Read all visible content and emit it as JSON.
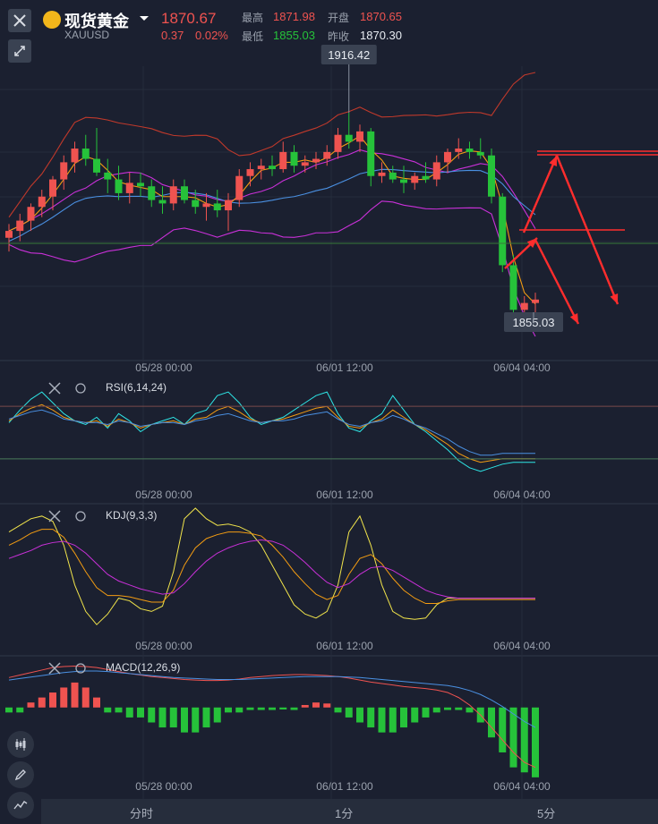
{
  "header": {
    "name": "现货黄金",
    "symbol": "XAUUSD",
    "price": "1870.67",
    "change": "0.37",
    "change_pct": "0.02%",
    "high_label": "最高",
    "high": "1871.98",
    "open_label": "开盘",
    "open": "1870.65",
    "low_label": "最低",
    "low": "1855.03",
    "prev_label": "昨收",
    "prev": "1870.30"
  },
  "callouts": {
    "max_label": "1916.42",
    "min_label": "1855.03"
  },
  "timeframes": [
    "分时",
    "1分",
    "5分"
  ],
  "colors": {
    "up": "#ef5350",
    "down": "#26c23a",
    "bg": "#1b2030",
    "ma_fast": "#f39c12",
    "ma_slow": "#4a90e2",
    "ma_mid": "#c930d8",
    "boll": "#c0392b",
    "arrow": "#ff2d2d"
  },
  "chart_data": [
    {
      "type": "candlestick",
      "name": "price",
      "x_ticks": [
        "05/28 00:00",
        "06/01 12:00",
        "06/04 04:00"
      ],
      "ylim": [
        1845,
        1930
      ],
      "candles": [
        {
          "o": 1880,
          "h": 1884,
          "l": 1876,
          "c": 1882
        },
        {
          "o": 1882,
          "h": 1887,
          "l": 1879,
          "c": 1885
        },
        {
          "o": 1885,
          "h": 1890,
          "l": 1882,
          "c": 1889
        },
        {
          "o": 1889,
          "h": 1894,
          "l": 1886,
          "c": 1892
        },
        {
          "o": 1892,
          "h": 1898,
          "l": 1888,
          "c": 1897
        },
        {
          "o": 1897,
          "h": 1904,
          "l": 1894,
          "c": 1902
        },
        {
          "o": 1902,
          "h": 1908,
          "l": 1899,
          "c": 1906
        },
        {
          "o": 1906,
          "h": 1910,
          "l": 1901,
          "c": 1903
        },
        {
          "o": 1903,
          "h": 1912,
          "l": 1898,
          "c": 1899
        },
        {
          "o": 1899,
          "h": 1903,
          "l": 1893,
          "c": 1897
        },
        {
          "o": 1897,
          "h": 1901,
          "l": 1891,
          "c": 1893
        },
        {
          "o": 1893,
          "h": 1899,
          "l": 1890,
          "c": 1896
        },
        {
          "o": 1896,
          "h": 1899,
          "l": 1892,
          "c": 1895
        },
        {
          "o": 1895,
          "h": 1897,
          "l": 1889,
          "c": 1891
        },
        {
          "o": 1891,
          "h": 1895,
          "l": 1887,
          "c": 1890
        },
        {
          "o": 1890,
          "h": 1897,
          "l": 1888,
          "c": 1895
        },
        {
          "o": 1895,
          "h": 1897,
          "l": 1890,
          "c": 1891
        },
        {
          "o": 1891,
          "h": 1894,
          "l": 1887,
          "c": 1889
        },
        {
          "o": 1889,
          "h": 1893,
          "l": 1885,
          "c": 1890
        },
        {
          "o": 1890,
          "h": 1894,
          "l": 1886,
          "c": 1888
        },
        {
          "o": 1888,
          "h": 1893,
          "l": 1882,
          "c": 1891
        },
        {
          "o": 1891,
          "h": 1900,
          "l": 1889,
          "c": 1898
        },
        {
          "o": 1898,
          "h": 1902,
          "l": 1895,
          "c": 1900
        },
        {
          "o": 1900,
          "h": 1903,
          "l": 1897,
          "c": 1901
        },
        {
          "o": 1901,
          "h": 1904,
          "l": 1898,
          "c": 1900
        },
        {
          "o": 1900,
          "h": 1908,
          "l": 1899,
          "c": 1905
        },
        {
          "o": 1905,
          "h": 1907,
          "l": 1899,
          "c": 1901
        },
        {
          "o": 1901,
          "h": 1904,
          "l": 1899,
          "c": 1902
        },
        {
          "o": 1902,
          "h": 1905,
          "l": 1900,
          "c": 1903
        },
        {
          "o": 1903,
          "h": 1907,
          "l": 1901,
          "c": 1905
        },
        {
          "o": 1905,
          "h": 1912,
          "l": 1903,
          "c": 1910
        },
        {
          "o": 1910,
          "h": 1916.42,
          "l": 1906,
          "c": 1908
        },
        {
          "o": 1908,
          "h": 1913,
          "l": 1905,
          "c": 1911
        },
        {
          "o": 1911,
          "h": 1912,
          "l": 1895,
          "c": 1898
        },
        {
          "o": 1898,
          "h": 1902,
          "l": 1896,
          "c": 1899
        },
        {
          "o": 1899,
          "h": 1901,
          "l": 1896,
          "c": 1897
        },
        {
          "o": 1897,
          "h": 1901,
          "l": 1893,
          "c": 1896
        },
        {
          "o": 1896,
          "h": 1899,
          "l": 1894,
          "c": 1898
        },
        {
          "o": 1898,
          "h": 1902,
          "l": 1896,
          "c": 1897
        },
        {
          "o": 1897,
          "h": 1904,
          "l": 1895,
          "c": 1902
        },
        {
          "o": 1902,
          "h": 1906,
          "l": 1899,
          "c": 1905
        },
        {
          "o": 1905,
          "h": 1909,
          "l": 1903,
          "c": 1906
        },
        {
          "o": 1906,
          "h": 1908,
          "l": 1903,
          "c": 1905
        },
        {
          "o": 1905,
          "h": 1909,
          "l": 1903,
          "c": 1904
        },
        {
          "o": 1904,
          "h": 1906,
          "l": 1890,
          "c": 1892
        },
        {
          "o": 1892,
          "h": 1893,
          "l": 1870,
          "c": 1872
        },
        {
          "o": 1872,
          "h": 1875,
          "l": 1856,
          "c": 1859
        },
        {
          "o": 1859,
          "h": 1863,
          "l": 1857,
          "c": 1861
        },
        {
          "o": 1861,
          "h": 1864,
          "l": 1855.03,
          "c": 1862
        }
      ]
    },
    {
      "type": "line",
      "name": "RSI",
      "title": "RSI(6,14,24)",
      "x_ticks": [
        "05/28 00:00",
        "06/01 12:00",
        "06/04 04:00"
      ],
      "series": [
        {
          "values": [
            55,
            62,
            68,
            72,
            66,
            60,
            56,
            54,
            58,
            52,
            60,
            56,
            50,
            54,
            56,
            58,
            54,
            60,
            62,
            70,
            72,
            66,
            58,
            54,
            56,
            58,
            62,
            66,
            70,
            72,
            60,
            52,
            50,
            56,
            60,
            70,
            62,
            54,
            50,
            45,
            40,
            34,
            30,
            28,
            30,
            32,
            33,
            33,
            33
          ]
        },
        {
          "values": [
            56,
            60,
            63,
            65,
            62,
            58,
            56,
            55,
            56,
            53,
            57,
            55,
            52,
            54,
            55,
            56,
            54,
            57,
            58,
            62,
            64,
            61,
            57,
            55,
            56,
            57,
            59,
            61,
            63,
            64,
            58,
            53,
            52,
            55,
            57,
            62,
            58,
            54,
            51,
            47,
            43,
            38,
            35,
            33,
            34,
            35,
            35,
            35,
            35
          ]
        },
        {
          "values": [
            57,
            59,
            61,
            62,
            60,
            57,
            56,
            55,
            55,
            54,
            56,
            55,
            53,
            54,
            55,
            55,
            54,
            56,
            57,
            59,
            60,
            58,
            56,
            55,
            56,
            56,
            57,
            59,
            60,
            61,
            57,
            54,
            53,
            55,
            56,
            59,
            57,
            54,
            52,
            49,
            46,
            42,
            39,
            37,
            37,
            38,
            38,
            38,
            38
          ]
        }
      ]
    },
    {
      "type": "line",
      "name": "KDJ",
      "title": "KDJ(9,3,3)",
      "x_ticks": [
        "05/28 00:00",
        "06/01 12:00",
        "06/04 04:00"
      ],
      "series": [
        {
          "values": [
            80,
            85,
            90,
            92,
            88,
            70,
            40,
            20,
            10,
            18,
            30,
            28,
            22,
            20,
            24,
            50,
            90,
            98,
            90,
            85,
            86,
            84,
            80,
            70,
            55,
            40,
            25,
            18,
            15,
            20,
            40,
            80,
            92,
            70,
            40,
            20,
            15,
            14,
            15,
            25,
            30,
            30,
            30,
            30,
            30,
            30,
            30,
            30,
            30
          ]
        },
        {
          "values": [
            70,
            74,
            79,
            82,
            82,
            76,
            64,
            50,
            38,
            32,
            32,
            31,
            29,
            27,
            27,
            36,
            55,
            68,
            75,
            78,
            80,
            80,
            79,
            77,
            70,
            61,
            50,
            41,
            33,
            29,
            32,
            48,
            60,
            63,
            56,
            45,
            36,
            30,
            26,
            26,
            28,
            29,
            29,
            29,
            29,
            29,
            29,
            29,
            29
          ]
        },
        {
          "values": [
            60,
            63,
            66,
            70,
            72,
            73,
            70,
            64,
            56,
            48,
            43,
            40,
            37,
            35,
            33,
            34,
            41,
            50,
            58,
            64,
            68,
            71,
            73,
            74,
            73,
            70,
            64,
            57,
            49,
            42,
            38,
            41,
            48,
            53,
            54,
            51,
            46,
            41,
            36,
            33,
            31,
            30,
            30,
            30,
            30,
            30,
            30,
            30,
            30
          ]
        }
      ]
    },
    {
      "type": "bar+line",
      "name": "MACD",
      "title": "MACD(12,26,9)",
      "x_ticks": [
        "05/28 00:00",
        "06/01 12:00",
        "06/04 04:00"
      ],
      "histogram": [
        -1,
        -1,
        1,
        2,
        3,
        4,
        5,
        4,
        2,
        -1,
        -1,
        -2,
        -2,
        -3,
        -4,
        -4,
        -5,
        -5,
        -4,
        -3,
        -1,
        -1,
        -0.5,
        -0.5,
        -0.5,
        -0.4,
        -0.5,
        0.5,
        1,
        0.8,
        -1,
        -2,
        -3,
        -4,
        -5,
        -5,
        -4,
        -3,
        -2,
        -1,
        -0.5,
        -0.5,
        -1,
        -3,
        -6,
        -9,
        -12,
        -13,
        -14
      ],
      "series": [
        {
          "values": [
            6,
            6.5,
            7,
            7.5,
            8,
            8.2,
            8.3,
            8.2,
            8,
            7.6,
            7.2,
            6.8,
            6.5,
            6.2,
            6,
            5.8,
            5.6,
            5.5,
            5.4,
            5.4,
            5.5,
            5.7,
            6,
            6.2,
            6.4,
            6.5,
            6.6,
            6.6,
            6.5,
            6.4,
            6.2,
            5.9,
            5.5,
            5.1,
            4.8,
            4.5,
            4.2,
            4,
            3.8,
            3.5,
            3,
            2,
            0.5,
            -1.5,
            -4,
            -6.5,
            -9,
            -11,
            -12
          ]
        },
        {
          "values": [
            5.5,
            5.8,
            6.1,
            6.4,
            6.7,
            7,
            7.2,
            7.3,
            7.3,
            7.2,
            7,
            6.8,
            6.6,
            6.4,
            6.2,
            6,
            5.9,
            5.8,
            5.7,
            5.6,
            5.6,
            5.6,
            5.7,
            5.8,
            5.9,
            6,
            6.1,
            6.2,
            6.2,
            6.2,
            6.2,
            6.1,
            6,
            5.8,
            5.6,
            5.4,
            5.2,
            5,
            4.8,
            4.6,
            4.4,
            4,
            3.4,
            2.6,
            1.5,
            0.2,
            -1.3,
            -2.8,
            -4
          ]
        }
      ]
    }
  ]
}
